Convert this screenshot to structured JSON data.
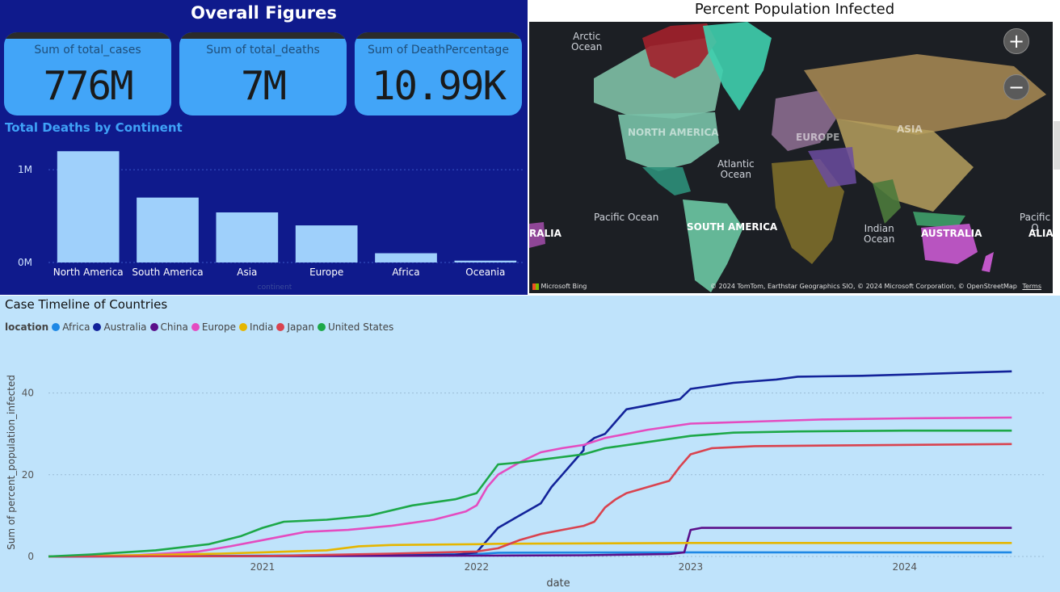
{
  "overall": {
    "title": "Overall Figures",
    "cards": [
      {
        "label": "Sum of total_cases",
        "value": "776M"
      },
      {
        "label": "Sum of total_deaths",
        "value": "7M"
      },
      {
        "label": "Sum of DeathPercentage",
        "value": "10.99K"
      }
    ]
  },
  "map": {
    "title": "Percent Population Infected",
    "zoom_in": "+",
    "zoom_out": "−",
    "labels": {
      "arctic": "Arctic\nOcean",
      "atlantic": "Atlantic\nOcean",
      "pacific_left": "Pacific Ocean",
      "pacific_right": "Pacific O",
      "indian": "Indian\nOcean",
      "north_america": "NORTH AMERICA",
      "south_america": "SOUTH AMERICA",
      "europe": "EUROPE",
      "asia": "ASIA",
      "australia": "AUSTRALIA",
      "ralia": "RALIA",
      "alia": "ALIA"
    },
    "bing": "Microsoft Bing",
    "attribution": "© 2024 TomTom, Earthstar Geographics SIO, © 2024 Microsoft Corporation, © OpenStreetMap",
    "terms": "Terms"
  },
  "timeline": {
    "title": "Case Timeline of Countries",
    "legend_title": "location"
  },
  "chart_data": [
    {
      "type": "bar",
      "title": "Total Deaths by Continent",
      "categories": [
        "North America",
        "South America",
        "Asia",
        "Europe",
        "Africa",
        "Oceania"
      ],
      "values": [
        1200000,
        700000,
        540000,
        400000,
        100000,
        20000
      ],
      "y_ticks": [
        "0M",
        "1M"
      ],
      "ylim": [
        0,
        1350000
      ],
      "xlabel": "continent",
      "ylabel": "",
      "bar_color": "#9fd0fb"
    },
    {
      "type": "line",
      "ylabel": "Sum of percent_population_infected",
      "xlabel": "date",
      "x_ticks": [
        "2021",
        "2022",
        "2023",
        "2024"
      ],
      "y_ticks": [
        0,
        20,
        40
      ],
      "xlim": [
        2020.0,
        2024.65
      ],
      "ylim": [
        0,
        50
      ],
      "series": [
        {
          "name": "Africa",
          "color": "#1e88e5",
          "points": [
            [
              2020.0,
              0
            ],
            [
              2020.5,
              0.1
            ],
            [
              2021.0,
              0.2
            ],
            [
              2021.5,
              0.4
            ],
            [
              2022.0,
              0.6
            ],
            [
              2022.1,
              0.9
            ],
            [
              2023.0,
              1.0
            ],
            [
              2024.5,
              1.0
            ]
          ]
        },
        {
          "name": "Australia",
          "color": "#13239a",
          "points": [
            [
              2020.0,
              0
            ],
            [
              2021.0,
              0.1
            ],
            [
              2021.5,
              0.2
            ],
            [
              2021.9,
              0.4
            ],
            [
              2022.0,
              1.0
            ],
            [
              2022.05,
              4
            ],
            [
              2022.1,
              7
            ],
            [
              2022.2,
              10
            ],
            [
              2022.3,
              13
            ],
            [
              2022.35,
              17
            ],
            [
              2022.4,
              20
            ],
            [
              2022.45,
              23
            ],
            [
              2022.5,
              26
            ],
            [
              2022.55,
              29
            ],
            [
              2022.5,
              27
            ],
            [
              2022.6,
              30
            ],
            [
              2022.65,
              33
            ],
            [
              2022.7,
              36
            ],
            [
              2022.8,
              37
            ],
            [
              2022.9,
              38
            ],
            [
              2022.95,
              38.5
            ],
            [
              2023.0,
              41
            ],
            [
              2023.2,
              42.5
            ],
            [
              2023.4,
              43.3
            ],
            [
              2023.5,
              44
            ],
            [
              2023.8,
              44.2
            ],
            [
              2024.0,
              44.5
            ],
            [
              2024.3,
              45
            ],
            [
              2024.5,
              45.3
            ]
          ]
        },
        {
          "name": "China",
          "color": "#5b0f8a",
          "points": [
            [
              2020.0,
              0
            ],
            [
              2021.0,
              0.1
            ],
            [
              2022.0,
              0.2
            ],
            [
              2022.5,
              0.3
            ],
            [
              2022.9,
              0.6
            ],
            [
              2022.97,
              1.0
            ],
            [
              2023.0,
              6.5
            ],
            [
              2023.05,
              7.0
            ],
            [
              2024.5,
              7.0
            ]
          ]
        },
        {
          "name": "Europe",
          "color": "#e44cc0",
          "points": [
            [
              2020.0,
              0
            ],
            [
              2020.4,
              0.3
            ],
            [
              2020.7,
              1.2
            ],
            [
              2020.85,
              2.5
            ],
            [
              2021.0,
              4
            ],
            [
              2021.1,
              5
            ],
            [
              2021.2,
              6
            ],
            [
              2021.4,
              6.5
            ],
            [
              2021.6,
              7.5
            ],
            [
              2021.8,
              9
            ],
            [
              2021.95,
              11
            ],
            [
              2022.0,
              12.5
            ],
            [
              2022.05,
              17
            ],
            [
              2022.1,
              20
            ],
            [
              2022.2,
              23
            ],
            [
              2022.3,
              25.5
            ],
            [
              2022.4,
              26.5
            ],
            [
              2022.5,
              27.3
            ],
            [
              2022.6,
              29
            ],
            [
              2022.8,
              31
            ],
            [
              2023.0,
              32.5
            ],
            [
              2023.3,
              33
            ],
            [
              2023.6,
              33.5
            ],
            [
              2024.0,
              33.8
            ],
            [
              2024.5,
              34
            ]
          ]
        },
        {
          "name": "India",
          "color": "#e5b600",
          "points": [
            [
              2020.0,
              0
            ],
            [
              2020.5,
              0.4
            ],
            [
              2020.8,
              0.7
            ],
            [
              2021.0,
              1.0
            ],
            [
              2021.3,
              1.5
            ],
            [
              2021.45,
              2.5
            ],
            [
              2021.6,
              2.8
            ],
            [
              2022.0,
              3.0
            ],
            [
              2022.1,
              3.1
            ],
            [
              2023.0,
              3.3
            ],
            [
              2024.5,
              3.3
            ]
          ]
        },
        {
          "name": "Japan",
          "color": "#d9434f",
          "points": [
            [
              2020.0,
              0
            ],
            [
              2021.0,
              0.1
            ],
            [
              2021.6,
              0.7
            ],
            [
              2022.0,
              1.2
            ],
            [
              2022.1,
              2
            ],
            [
              2022.2,
              4
            ],
            [
              2022.3,
              5.5
            ],
            [
              2022.4,
              6.5
            ],
            [
              2022.5,
              7.5
            ],
            [
              2022.55,
              8.5
            ],
            [
              2022.6,
              12
            ],
            [
              2022.65,
              14
            ],
            [
              2022.7,
              15.5
            ],
            [
              2022.8,
              17
            ],
            [
              2022.9,
              18.5
            ],
            [
              2022.95,
              22
            ],
            [
              2023.0,
              25
            ],
            [
              2023.1,
              26.5
            ],
            [
              2023.3,
              27
            ],
            [
              2024.5,
              27.5
            ]
          ]
        },
        {
          "name": "United States",
          "color": "#1da848",
          "points": [
            [
              2020.0,
              0
            ],
            [
              2020.2,
              0.5
            ],
            [
              2020.5,
              1.5
            ],
            [
              2020.75,
              3
            ],
            [
              2020.9,
              5
            ],
            [
              2021.0,
              7
            ],
            [
              2021.1,
              8.5
            ],
            [
              2021.3,
              9
            ],
            [
              2021.5,
              10
            ],
            [
              2021.7,
              12.5
            ],
            [
              2021.9,
              14
            ],
            [
              2022.0,
              15.5
            ],
            [
              2022.05,
              19
            ],
            [
              2022.1,
              22.5
            ],
            [
              2022.2,
              23
            ],
            [
              2022.35,
              24
            ],
            [
              2022.5,
              25
            ],
            [
              2022.6,
              26.5
            ],
            [
              2022.8,
              28
            ],
            [
              2023.0,
              29.5
            ],
            [
              2023.2,
              30.3
            ],
            [
              2023.5,
              30.6
            ],
            [
              2024.0,
              30.8
            ],
            [
              2024.5,
              30.8
            ]
          ]
        }
      ]
    }
  ]
}
